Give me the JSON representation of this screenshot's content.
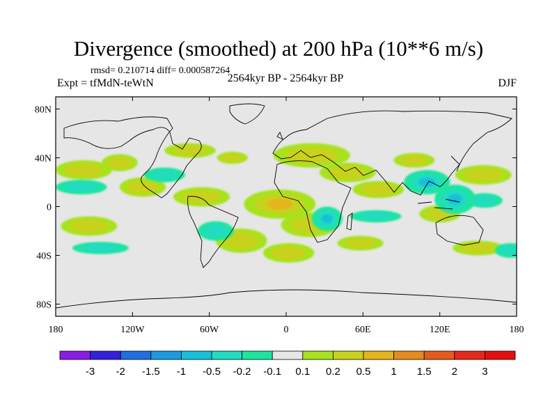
{
  "title": "Divergence (smoothed) at 200 hPa (10**6 m/s)",
  "stats": "rmsd= 0.210714 diff= 0.000587264",
  "experiment": "Expt = tfMdN-teWtN",
  "period": "2564kyr BP - 2564kyr BP",
  "season": "DJF",
  "chart_data": {
    "type": "map",
    "projection": "cylindrical-equidistant",
    "lon_range": [
      -180,
      180
    ],
    "lat_range": [
      -90,
      90
    ],
    "x_ticks": [
      {
        "lon": -180,
        "label": "180"
      },
      {
        "lon": -120,
        "label": "120W"
      },
      {
        "lon": -60,
        "label": "60W"
      },
      {
        "lon": 0,
        "label": "0"
      },
      {
        "lon": 60,
        "label": "60E"
      },
      {
        "lon": 120,
        "label": "120E"
      },
      {
        "lon": 180,
        "label": "180"
      }
    ],
    "y_ticks": [
      {
        "lat": 80,
        "label": "80N"
      },
      {
        "lat": 40,
        "label": "40N"
      },
      {
        "lat": 0,
        "label": "0"
      },
      {
        "lat": -40,
        "label": "40S"
      },
      {
        "lat": -80,
        "label": "80S"
      }
    ],
    "colorbar": {
      "levels": [
        "-3",
        "-2",
        "-1.5",
        "-1",
        "-0.5",
        "-0.2",
        "-0.1",
        "0.1",
        "0.2",
        "0.5",
        "1",
        "1.5",
        "2",
        "3"
      ],
      "colors": [
        "#8B1CE6",
        "#3320DD",
        "#1F6FE0",
        "#1B9AE0",
        "#17C0DC",
        "#20DCC0",
        "#1DE5A0",
        "#E6E6E6",
        "#A8E21C",
        "#C8D21C",
        "#E6B41C",
        "#E68A1C",
        "#E65A1C",
        "#E6281C",
        "#E60E0E"
      ]
    },
    "positive_blobs": [
      {
        "lon": -158,
        "lat": 30,
        "rx": 22,
        "ry": 8,
        "level": 1
      },
      {
        "lon": -130,
        "lat": 36,
        "rx": 14,
        "ry": 7,
        "level": 1
      },
      {
        "lon": -112,
        "lat": 16,
        "rx": 18,
        "ry": 8,
        "level": 1
      },
      {
        "lon": -66,
        "lat": 8,
        "rx": 22,
        "ry": 8,
        "level": 1
      },
      {
        "lon": -75,
        "lat": 46,
        "rx": 20,
        "ry": 6,
        "level": 1
      },
      {
        "lon": -42,
        "lat": 40,
        "rx": 12,
        "ry": 5,
        "level": 1
      },
      {
        "lon": -5,
        "lat": 2,
        "rx": 28,
        "ry": 12,
        "level": 2
      },
      {
        "lon": 18,
        "lat": -15,
        "rx": 22,
        "ry": 10,
        "level": 1
      },
      {
        "lon": 20,
        "lat": 42,
        "rx": 30,
        "ry": 10,
        "level": 1
      },
      {
        "lon": 48,
        "lat": 28,
        "rx": 22,
        "ry": 8,
        "level": 1
      },
      {
        "lon": 72,
        "lat": 14,
        "rx": 20,
        "ry": 7,
        "level": 1
      },
      {
        "lon": 120,
        "lat": -6,
        "rx": 16,
        "ry": 7,
        "level": 1
      },
      {
        "lon": 154,
        "lat": 26,
        "rx": 22,
        "ry": 8,
        "level": 1
      },
      {
        "lon": -154,
        "lat": -16,
        "rx": 22,
        "ry": 8,
        "level": 1
      },
      {
        "lon": -35,
        "lat": -28,
        "rx": 20,
        "ry": 10,
        "level": 1
      },
      {
        "lon": 2,
        "lat": -38,
        "rx": 20,
        "ry": 8,
        "level": 1
      },
      {
        "lon": 58,
        "lat": -30,
        "rx": 18,
        "ry": 6,
        "level": 1
      },
      {
        "lon": 150,
        "lat": -34,
        "rx": 20,
        "ry": 6,
        "level": 1
      },
      {
        "lon": 100,
        "lat": 38,
        "rx": 16,
        "ry": 6,
        "level": 1
      }
    ],
    "negative_blobs": [
      {
        "lon": -160,
        "lat": 16,
        "rx": 20,
        "ry": 6,
        "level": 1
      },
      {
        "lon": -95,
        "lat": 26,
        "rx": 16,
        "ry": 6,
        "level": 1
      },
      {
        "lon": 110,
        "lat": 20,
        "rx": 18,
        "ry": 10,
        "level": 2
      },
      {
        "lon": 132,
        "lat": 6,
        "rx": 16,
        "ry": 12,
        "level": 3
      },
      {
        "lon": 155,
        "lat": 5,
        "rx": 14,
        "ry": 6,
        "level": 1
      },
      {
        "lon": -55,
        "lat": -20,
        "rx": 14,
        "ry": 8,
        "level": 1
      },
      {
        "lon": 32,
        "lat": -10,
        "rx": 12,
        "ry": 10,
        "level": 2
      },
      {
        "lon": 70,
        "lat": -8,
        "rx": 20,
        "ry": 5,
        "level": 1
      },
      {
        "lon": -145,
        "lat": -34,
        "rx": 22,
        "ry": 5,
        "level": 1
      },
      {
        "lon": 175,
        "lat": -36,
        "rx": 12,
        "ry": 6,
        "level": 1
      }
    ]
  }
}
